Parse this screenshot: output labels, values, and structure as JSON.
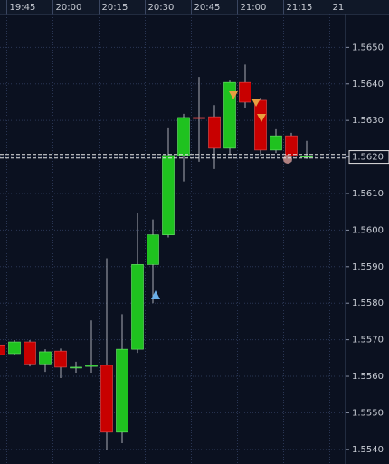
{
  "chart_data": {
    "type": "candlestick",
    "categories": [
      null,
      "19:45",
      null,
      null,
      "20:00",
      null,
      null,
      "20:15",
      null,
      null,
      "20:30",
      null,
      null,
      "20:45",
      null,
      null,
      "21:00",
      null,
      null,
      "21:15",
      null
    ],
    "x_partial_label": "21",
    "open": [
      1.55686,
      1.55662,
      1.55694,
      1.55634,
      1.55669,
      1.55625,
      1.55627,
      1.5563,
      1.55447,
      1.55674,
      1.55906,
      1.55987,
      1.56204,
      1.56308,
      1.5631,
      1.56224,
      1.56404,
      1.56355,
      1.56219,
      1.56258,
      1.56202
    ],
    "high": [
      1.5569,
      1.55699,
      1.55699,
      1.55674,
      1.55676,
      1.5564,
      1.55753,
      1.55923,
      1.5577,
      1.56046,
      1.56029,
      1.56281,
      1.56318,
      1.56419,
      1.56342,
      1.56409,
      1.56453,
      1.56362,
      1.56276,
      1.56266,
      1.56244
    ],
    "low": [
      1.55655,
      1.55657,
      1.55627,
      1.55612,
      1.55595,
      1.5561,
      1.5561,
      1.55398,
      1.55417,
      1.55664,
      1.558,
      1.5598,
      1.56133,
      1.56187,
      1.56167,
      1.56207,
      1.56335,
      1.56202,
      1.56211,
      1.56187,
      1.56195
    ],
    "close": [
      1.55659,
      1.55694,
      1.55634,
      1.55667,
      1.55625,
      1.55625,
      1.5563,
      1.55447,
      1.55674,
      1.55906,
      1.55987,
      1.56204,
      1.56308,
      1.56305,
      1.56224,
      1.56404,
      1.5635,
      1.56219,
      1.56258,
      1.56202,
      1.56202
    ],
    "up_color": "#1fc21f",
    "down_color": "#c80000",
    "ylim": [
      1.5536,
      1.5659
    ],
    "yticks": [
      {
        "value": 1.565,
        "label": "1.5650"
      },
      {
        "value": 1.564,
        "label": "1.5640"
      },
      {
        "value": 1.563,
        "label": "1.5630"
      },
      {
        "value": 1.562,
        "label": "1.5620"
      },
      {
        "value": 1.561,
        "label": "1.5610"
      },
      {
        "value": 1.56,
        "label": "1.5600"
      },
      {
        "value": 1.559,
        "label": "1.5590"
      },
      {
        "value": 1.558,
        "label": "1.5580"
      },
      {
        "value": 1.557,
        "label": "1.5570"
      },
      {
        "value": 1.556,
        "label": "1.5560"
      },
      {
        "value": 1.555,
        "label": "1.5550"
      },
      {
        "value": 1.554,
        "label": "1.5540"
      }
    ],
    "highlight_tick": 3,
    "price_lines": [
      1.56207,
      1.56197
    ],
    "grid": true
  }
}
